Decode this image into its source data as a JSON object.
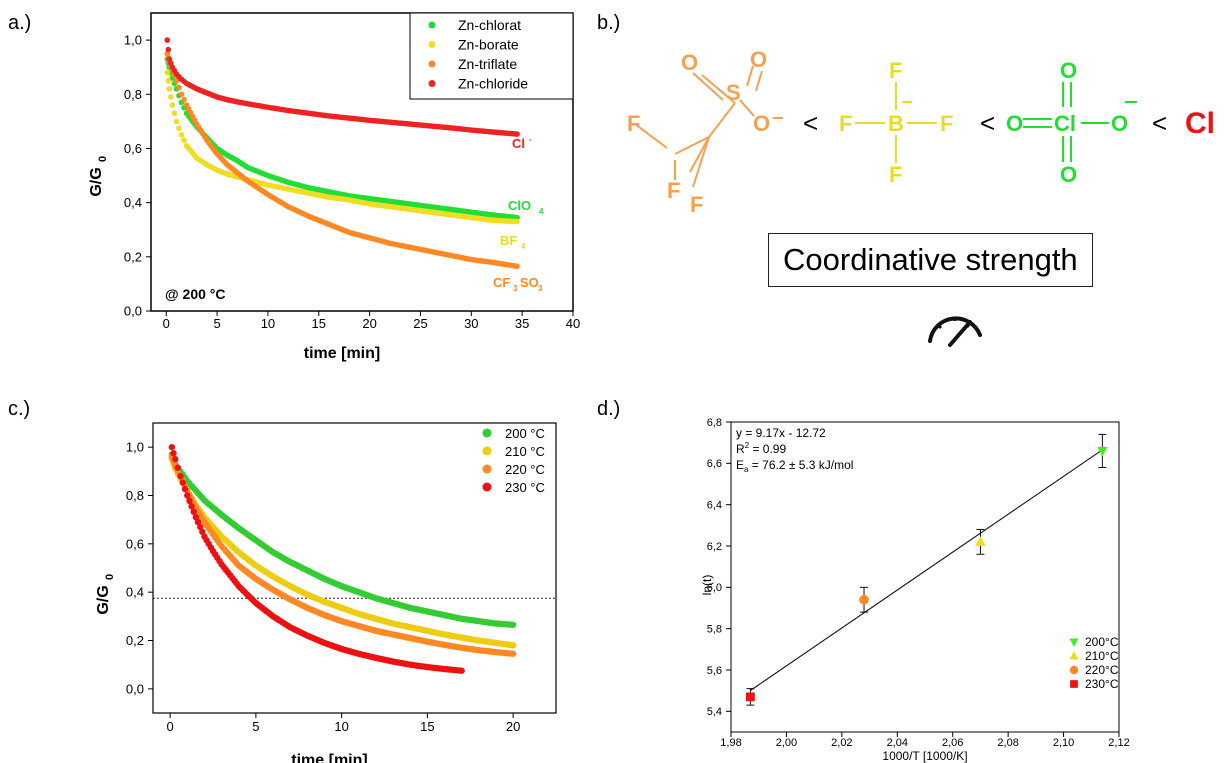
{
  "panels": {
    "a_label": "a.)",
    "b_label": "b.)",
    "c_label": "c.)",
    "d_label": "d.)"
  },
  "chart_data": [
    {
      "id": "a",
      "type": "scatter",
      "title": "",
      "xlabel": "time [min]",
      "ylabel_main": "G/G",
      "ylabel_sub": "0",
      "xlim": [
        -1.5,
        40
      ],
      "ylim": [
        0,
        1.1
      ],
      "xticks": [
        "0",
        "5",
        "10",
        "15",
        "20",
        "25",
        "30",
        "35",
        "40"
      ],
      "xtick_values": [
        0,
        5,
        10,
        15,
        20,
        25,
        30,
        35,
        40
      ],
      "yticks": [
        "0,0",
        "0,2",
        "0,4",
        "0,6",
        "0,8",
        "1,0"
      ],
      "ytick_values": [
        0,
        0.2,
        0.4,
        0.6,
        0.8,
        1.0
      ],
      "grid": false,
      "legend_position": "top-right",
      "annotation": "@ 200 °C",
      "series": [
        {
          "name": "Zn-chlorat",
          "color": "#22dd33",
          "x": [
            0.1,
            0.3,
            0.6,
            1,
            1.5,
            2,
            3,
            4,
            5,
            6,
            7,
            8,
            10,
            12,
            14,
            16,
            18,
            20,
            22,
            24,
            26,
            28,
            30,
            32,
            34.5
          ],
          "y": [
            0.93,
            0.9,
            0.86,
            0.82,
            0.77,
            0.73,
            0.68,
            0.64,
            0.6,
            0.575,
            0.555,
            0.53,
            0.5,
            0.475,
            0.455,
            0.44,
            0.425,
            0.415,
            0.405,
            0.395,
            0.385,
            0.375,
            0.365,
            0.355,
            0.345
          ]
        },
        {
          "name": "Zn-borate",
          "color": "#eedd22",
          "x": [
            0.1,
            0.3,
            0.6,
            1,
            1.5,
            2,
            3,
            4,
            5,
            6,
            7,
            8,
            10,
            12,
            14,
            16,
            18,
            20,
            22,
            24,
            26,
            28,
            30,
            32,
            34.5
          ],
          "y": [
            0.88,
            0.82,
            0.76,
            0.7,
            0.65,
            0.61,
            0.565,
            0.54,
            0.52,
            0.505,
            0.495,
            0.485,
            0.465,
            0.45,
            0.435,
            0.42,
            0.41,
            0.395,
            0.385,
            0.375,
            0.365,
            0.355,
            0.345,
            0.335,
            0.33
          ]
        },
        {
          "name": "Zn-triflate",
          "color": "#ff8822",
          "x": [
            0.1,
            0.3,
            0.6,
            1,
            1.5,
            2,
            3,
            4,
            5,
            6,
            7,
            8,
            10,
            12,
            14,
            16,
            18,
            20,
            22,
            24,
            26,
            28,
            30,
            32,
            34.5
          ],
          "y": [
            0.95,
            0.92,
            0.89,
            0.85,
            0.8,
            0.76,
            0.69,
            0.63,
            0.58,
            0.54,
            0.51,
            0.48,
            0.43,
            0.385,
            0.35,
            0.32,
            0.29,
            0.27,
            0.25,
            0.235,
            0.22,
            0.205,
            0.19,
            0.18,
            0.165
          ]
        },
        {
          "name": "Zn-chloride",
          "color": "#ee2222",
          "x": [
            0.1,
            0.3,
            0.6,
            1,
            1.5,
            2,
            3,
            4,
            5,
            6,
            7,
            8,
            10,
            12,
            14,
            16,
            18,
            20,
            22,
            24,
            26,
            28,
            30,
            32,
            34.5
          ],
          "y": [
            1.0,
            0.93,
            0.9,
            0.875,
            0.855,
            0.84,
            0.82,
            0.805,
            0.79,
            0.78,
            0.772,
            0.765,
            0.752,
            0.74,
            0.73,
            0.72,
            0.712,
            0.704,
            0.697,
            0.69,
            0.683,
            0.676,
            0.668,
            0.661,
            0.653
          ]
        }
      ],
      "end_labels": [
        "Cl",
        "ClO",
        "BF",
        "CF",
        "SO"
      ]
    },
    {
      "id": "c",
      "type": "scatter",
      "title": "",
      "xlabel": "time [min]",
      "ylabel_main": "G/G",
      "ylabel_sub": "0",
      "xlim": [
        -1,
        22.5
      ],
      "ylim": [
        -0.1,
        1.1
      ],
      "xticks": [
        "0",
        "5",
        "10",
        "15",
        "20"
      ],
      "xtick_values": [
        0,
        5,
        10,
        15,
        20
      ],
      "yticks": [
        "0,0",
        "0,2",
        "0,4",
        "0,6",
        "0,8",
        "1,0"
      ],
      "ytick_values": [
        0,
        0.2,
        0.4,
        0.6,
        0.8,
        1.0
      ],
      "grid": false,
      "legend_position": "top-right",
      "reference_line_y": 0.375,
      "series": [
        {
          "name": "200 °C",
          "color": "#33cc33",
          "x": [
            0.1,
            0.3,
            0.6,
            1,
            1.5,
            2,
            3,
            4,
            5,
            6,
            7,
            8,
            9,
            10,
            11,
            12,
            13,
            14,
            15,
            16,
            17,
            18,
            19,
            20
          ],
          "y": [
            0.97,
            0.93,
            0.9,
            0.86,
            0.82,
            0.78,
            0.72,
            0.665,
            0.615,
            0.565,
            0.525,
            0.49,
            0.455,
            0.425,
            0.4,
            0.375,
            0.355,
            0.335,
            0.32,
            0.305,
            0.29,
            0.28,
            0.27,
            0.265
          ]
        },
        {
          "name": "210 °C",
          "color": "#eecc11",
          "x": [
            0.1,
            0.3,
            0.6,
            1,
            1.5,
            2,
            3,
            4,
            5,
            6,
            7,
            8,
            9,
            10,
            11,
            12,
            13,
            14,
            15,
            16,
            17,
            18,
            19,
            20
          ],
          "y": [
            0.95,
            0.91,
            0.87,
            0.82,
            0.76,
            0.71,
            0.63,
            0.565,
            0.51,
            0.465,
            0.425,
            0.39,
            0.36,
            0.335,
            0.31,
            0.29,
            0.27,
            0.255,
            0.24,
            0.225,
            0.212,
            0.2,
            0.19,
            0.18
          ]
        },
        {
          "name": "220 °C",
          "color": "#ff8822",
          "x": [
            0.1,
            0.3,
            0.6,
            1,
            1.5,
            2,
            3,
            4,
            5,
            6,
            7,
            8,
            9,
            10,
            11,
            12,
            13,
            14,
            15,
            16,
            17,
            18,
            19,
            20
          ],
          "y": [
            0.96,
            0.92,
            0.88,
            0.82,
            0.75,
            0.69,
            0.59,
            0.51,
            0.455,
            0.41,
            0.37,
            0.335,
            0.305,
            0.28,
            0.26,
            0.24,
            0.225,
            0.21,
            0.195,
            0.182,
            0.17,
            0.16,
            0.152,
            0.145
          ]
        },
        {
          "name": "230 °C",
          "color": "#ee1111",
          "x": [
            0.1,
            0.3,
            0.6,
            1,
            1.5,
            2,
            2.5,
            3,
            4,
            5,
            6,
            7,
            8,
            9,
            10,
            11,
            12,
            13,
            14,
            15,
            16,
            17
          ],
          "y": [
            1.0,
            0.95,
            0.88,
            0.8,
            0.71,
            0.63,
            0.57,
            0.515,
            0.425,
            0.355,
            0.3,
            0.255,
            0.22,
            0.19,
            0.165,
            0.145,
            0.128,
            0.113,
            0.1,
            0.09,
            0.082,
            0.075
          ]
        }
      ]
    },
    {
      "id": "d",
      "type": "scatter",
      "title": "",
      "xlabel": "1000/T [1000/K]",
      "ylabel": "ln(t)",
      "xlim": [
        1.98,
        2.12
      ],
      "ylim": [
        5.3,
        6.8
      ],
      "xticks": [
        "1,98",
        "2,00",
        "2,02",
        "2,04",
        "2,06",
        "2,08",
        "2,10",
        "2,12"
      ],
      "xtick_values": [
        1.98,
        2.0,
        2.02,
        2.04,
        2.06,
        2.08,
        2.1,
        2.12
      ],
      "yticks": [
        "5,4",
        "5,6",
        "5,8",
        "6,0",
        "6,2",
        "6,4",
        "6,6",
        "6,8"
      ],
      "ytick_values": [
        5.4,
        5.6,
        5.8,
        6.0,
        6.2,
        6.4,
        6.6,
        6.8
      ],
      "grid": false,
      "legend_position": "bottom-right",
      "fit": {
        "slope": 9.17,
        "intercept": -12.72,
        "x_range": [
          1.987,
          2.114
        ]
      },
      "annotations": [
        "y = 9.17x - 12.72",
        "R",
        "2",
        " = 0.99",
        "E",
        "a",
        " = 76.2 ± 5.3 kJ/mol"
      ],
      "series": [
        {
          "name": "200°C",
          "color": "#44ee22",
          "marker": "triangle-down",
          "x": [
            2.114
          ],
          "y": [
            6.66
          ],
          "err": [
            0.08
          ]
        },
        {
          "name": "210°C",
          "color": "#eedd11",
          "marker": "triangle-up",
          "x": [
            2.07
          ],
          "y": [
            6.22
          ],
          "err": [
            0.06
          ]
        },
        {
          "name": "220°C",
          "color": "#ff8822",
          "marker": "circle",
          "x": [
            2.028
          ],
          "y": [
            5.94
          ],
          "err": [
            0.06
          ]
        },
        {
          "name": "230°C",
          "color": "#ee1111",
          "marker": "square",
          "x": [
            1.987
          ],
          "y": [
            5.47
          ],
          "err": [
            0.04
          ]
        }
      ]
    }
  ],
  "panel_b": {
    "ordering_symbol": "<",
    "strength_label": "Coordinative strength",
    "gauge_icon": "speedometer-icon",
    "triflate_atoms": [
      "O",
      "O",
      "S",
      "O",
      "F",
      "F",
      "F"
    ],
    "tetrafluoroborate_atoms": [
      "F",
      "F",
      "B",
      "F",
      "F"
    ],
    "perchlorate_atoms": [
      "O",
      "O",
      "Cl",
      "O",
      "O"
    ],
    "chloride_atom": "Cl",
    "colors": {
      "triflate": "#f5a050",
      "borate": "#e8dc28",
      "perchlorate": "#22dd33",
      "chloride": "#ee1111"
    }
  }
}
